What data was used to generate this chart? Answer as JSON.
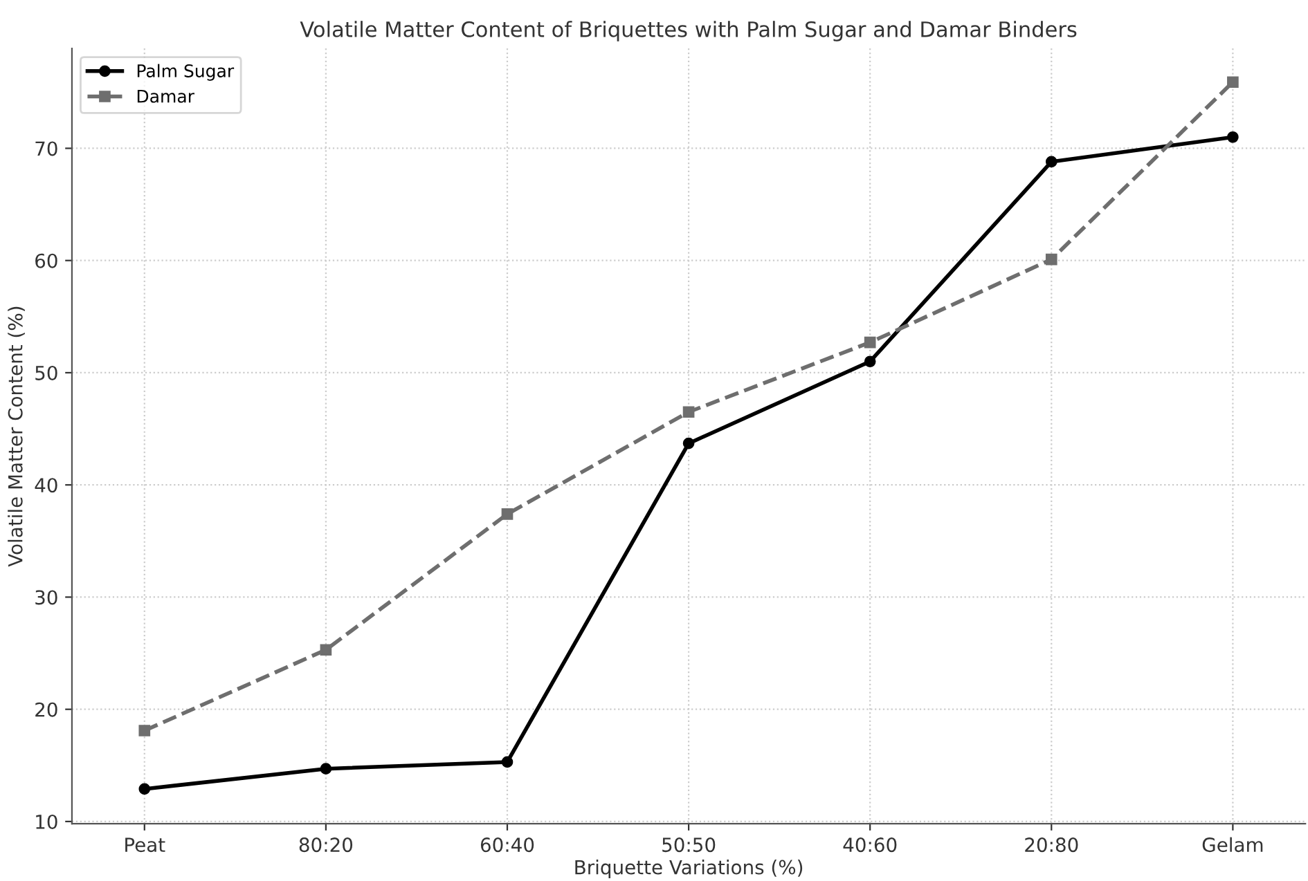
{
  "chart_data": {
    "type": "line",
    "title": "Volatile Matter Content of Briquettes with Palm Sugar and Damar Binders",
    "xlabel": "Briquette Variations (%)",
    "ylabel": "Volatile Matter Content (%)",
    "categories": [
      "Peat",
      "80:20",
      "60:40",
      "50:50",
      "40:60",
      "20:80",
      "Gelam"
    ],
    "series": [
      {
        "name": "Palm Sugar",
        "color": "#000000",
        "marker": "circle",
        "line_style": "solid",
        "values": [
          12.9,
          14.7,
          15.3,
          43.7,
          51.0,
          68.8,
          71.0
        ]
      },
      {
        "name": "Damar",
        "color": "#6e6e6e",
        "marker": "square",
        "line_style": "dashed",
        "values": [
          18.1,
          25.3,
          37.4,
          46.5,
          52.7,
          60.1,
          75.9
        ]
      }
    ],
    "ylim": [
      9.8,
      78.9
    ],
    "yticks": [
      10,
      20,
      30,
      40,
      50,
      60,
      70
    ],
    "grid": true,
    "legend": "top left"
  }
}
